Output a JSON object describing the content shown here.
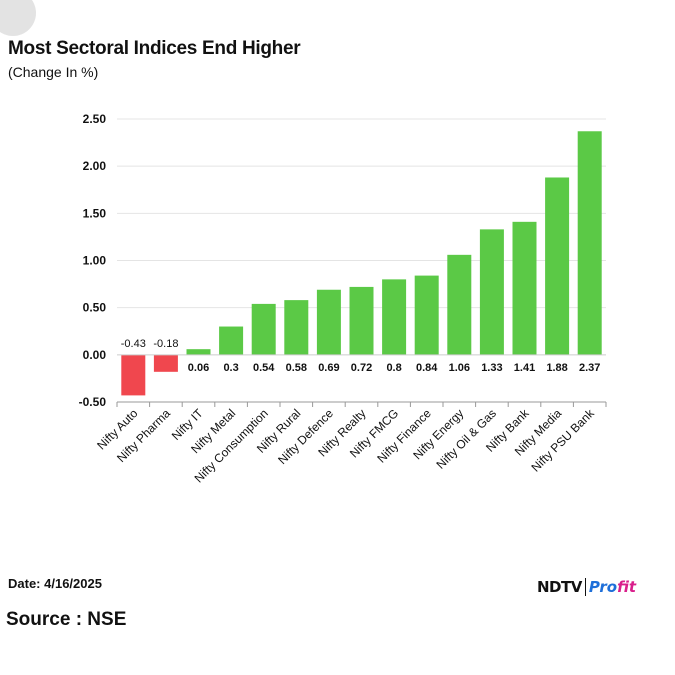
{
  "header": {
    "title": "Most Sectoral Indices End Higher",
    "subtitle": "(Change In %)"
  },
  "footer": {
    "date": "Date: 4/16/2025",
    "source": "Source : NSE",
    "logo_main": "NDTV",
    "logo_profit_part1": "Pro",
    "logo_profit_part2": "fit"
  },
  "colors": {
    "positive": "#5bc946",
    "negative": "#f0474e",
    "gridline": "#e4e4e4",
    "axis": "#999999",
    "text": "#111111"
  },
  "chart_data": {
    "type": "bar",
    "title": "Most Sectoral Indices End Higher",
    "subtitle": "(Change In %)",
    "categories": [
      "Nifty Auto",
      "Nifty Pharma",
      "Nifty IT",
      "Nifty Metal",
      "Nifty Consumption",
      "Nifty Rural",
      "Nifty Defence",
      "Nifty Realty",
      "Nifty FMCG",
      "Nifty Finance",
      "Nifty Energy",
      "Nifty Oil & Gas",
      "Nifty Bank",
      "Nifty Media",
      "Nifty PSU Bank"
    ],
    "values": [
      -0.43,
      -0.18,
      0.06,
      0.3,
      0.54,
      0.58,
      0.69,
      0.72,
      0.8,
      0.84,
      1.06,
      1.33,
      1.41,
      1.88,
      2.37
    ],
    "value_labels": [
      "-0.43",
      "-0.18",
      "0.06",
      "0.3",
      "0.54",
      "0.58",
      "0.69",
      "0.72",
      "0.8",
      "0.84",
      "1.06",
      "1.33",
      "1.41",
      "1.88",
      "2.37"
    ],
    "ylim": [
      -0.5,
      2.5
    ],
    "yticks": [
      -0.5,
      0,
      0.5,
      1,
      1.5,
      2,
      2.5
    ],
    "ytick_labels": [
      "-0.50",
      "0.00",
      "0.50",
      "1.00",
      "1.50",
      "2.00",
      "2.50"
    ],
    "grid": true,
    "legend": "none"
  }
}
